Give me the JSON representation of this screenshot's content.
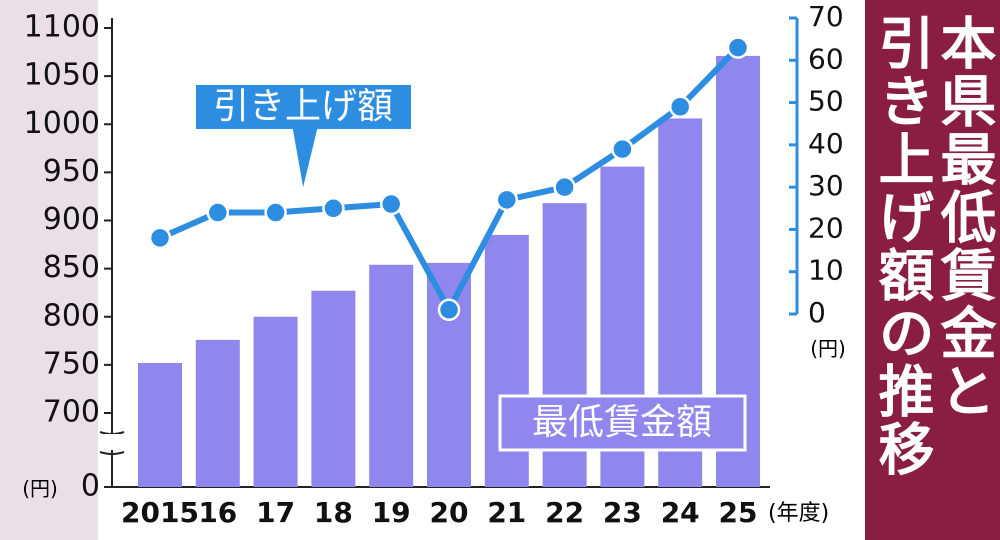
{
  "chart_data": {
    "type": "bar_line",
    "title": [
      "本県最低賃金と",
      "引き上げ額の推移"
    ],
    "categories": [
      "2015",
      "16",
      "17",
      "18",
      "19",
      "20",
      "21",
      "22",
      "23",
      "24",
      "25"
    ],
    "series": [
      {
        "name": "最低賃金額",
        "type": "bar",
        "color": "#8f87ee",
        "values": [
          752,
          776,
          800,
          827,
          854,
          856,
          885,
          918,
          956,
          1006,
          1071
        ]
      },
      {
        "name": "引き上げ額",
        "type": "line",
        "axis": "y2",
        "color": "#2d8de0",
        "values": [
          18,
          24,
          24,
          25,
          26,
          1,
          27,
          30,
          39,
          49,
          63
        ]
      }
    ],
    "ylim": [
      0,
      1100
    ],
    "y_break": [
      0,
      700
    ],
    "yticks": [
      0,
      700,
      750,
      800,
      850,
      900,
      950,
      1000,
      1050,
      1100
    ],
    "y2lim": [
      0,
      70
    ],
    "y2ticks": [
      0,
      10,
      20,
      30,
      40,
      50,
      60,
      70
    ],
    "y_unit": "(円)",
    "y2_unit": "(円)",
    "x_unit": "(年度)"
  }
}
